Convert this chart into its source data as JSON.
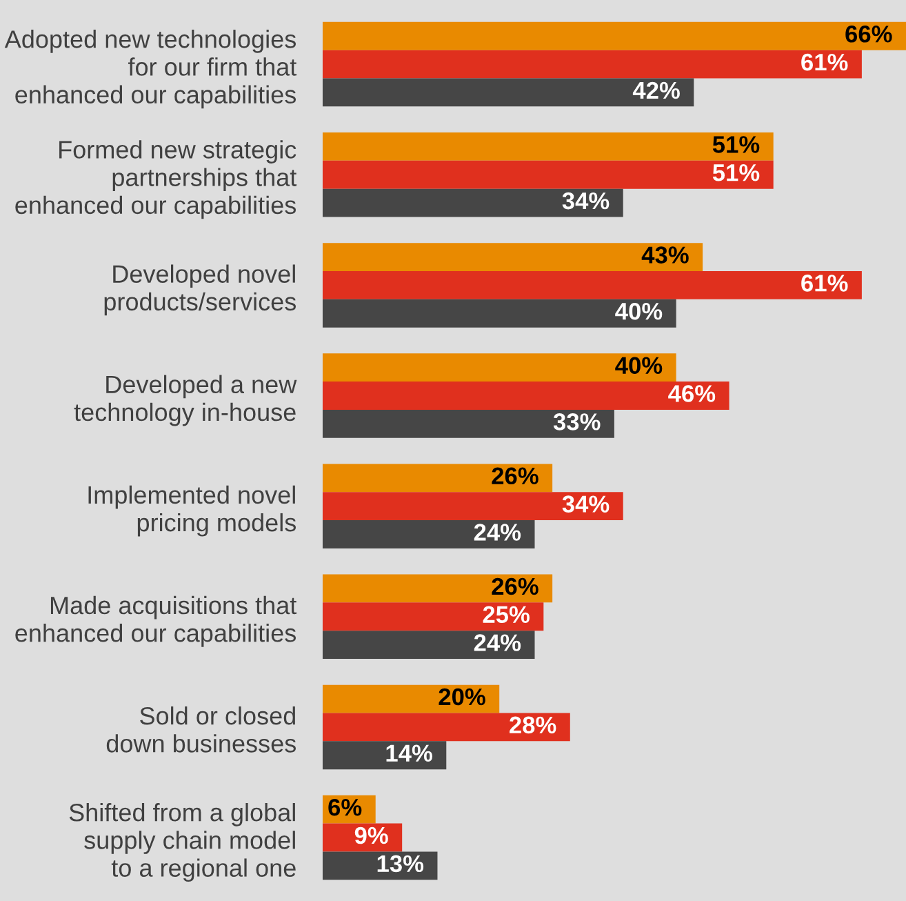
{
  "chart_data": {
    "type": "bar",
    "orientation": "horizontal",
    "tick_labels": "y",
    "categories": [
      "Adopted new technologies\nfor our firm that\nenhanced our capabilities",
      "Formed new strategic\npartnerships that\nenhanced our capabilities",
      "Developed novel\nproducts/services",
      "Developed a new\ntechnology in-house",
      "Implemented novel\npricing models",
      "Made acquisitions that\nenhanced our capabilities",
      "Sold or closed\ndown businesses",
      "Shifted from a global\nsupply chain model\nto a regional one"
    ],
    "series": [
      {
        "color": "#e98a00",
        "values": [
          66,
          51,
          43,
          40,
          26,
          26,
          20,
          6
        ],
        "value_labels": [
          "66%",
          "51%",
          "43%",
          "40%",
          "26%",
          "26%",
          "20%",
          "6%"
        ]
      },
      {
        "color": "#e0301e",
        "values": [
          61,
          51,
          61,
          46,
          34,
          25,
          28,
          9
        ],
        "value_labels": [
          "61%",
          "51%",
          "61%",
          "46%",
          "34%",
          "25%",
          "28%",
          "9%"
        ]
      },
      {
        "color": "#464646",
        "values": [
          42,
          34,
          40,
          33,
          24,
          24,
          14,
          13
        ],
        "value_labels": [
          "42%",
          "34%",
          "40%",
          "33%",
          "24%",
          "24%",
          "14%",
          "13%"
        ]
      }
    ]
  }
}
